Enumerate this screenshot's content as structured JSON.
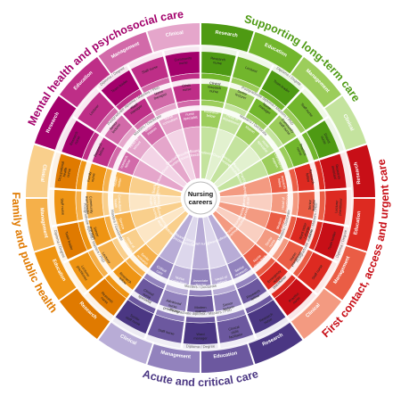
{
  "center": {
    "line1": "Nursing",
    "line2": "careers"
  },
  "rings": {
    "outer": "Diploma / Degree",
    "middle": "Postgraduate diploma / Masters / PhD",
    "inner": "Masters / Doctorate"
  },
  "quadrants": [
    {
      "title": "Supporting long-term care",
      "colors": [
        "#4e9a13",
        "#72b62c",
        "#9ccd5b",
        "#c4e39e",
        "#e2f1cf"
      ],
      "sub": [
        "Research",
        "Education",
        "Management",
        "Clinical"
      ],
      "roles": [
        [
          "Research nurse",
          "Lecturer",
          "Team leader",
          "Staff nurse",
          "District nurse"
        ],
        [
          "Clinical research nurse",
          "Senior lecturer",
          "Nurse manager",
          "Community staff nurse",
          "Practice nurse"
        ],
        [
          "Research fellow",
          "Head of department",
          "Matron",
          "Clinical nurse specialist",
          "Community matron"
        ],
        [
          "Professor",
          "Dean",
          "Director of nursing",
          "Nurse consultant",
          "Practice partner"
        ]
      ]
    },
    {
      "title": "First contact, access and urgent care",
      "colors": [
        "#c80f17",
        "#dd2a21",
        "#ea5d45",
        "#f39a81",
        "#f9cfc1"
      ],
      "sub": [
        "Research",
        "Education",
        "Management",
        "Clinical"
      ],
      "roles": [
        [
          "Research assistant",
          "Lecturer practitioner",
          "Team leader",
          "Staff nurse",
          "Practice nurse"
        ],
        [
          "Research fellow",
          "Senior lecturer",
          "Ward sister / charge nurse",
          "Nurse practitioner",
          "Emergency nurse practitioner"
        ],
        [
          "Clinical research fellow",
          "Head of department",
          "Modern matron",
          "Senior nurse practitioner",
          "Nurse consultant"
        ],
        [
          "Professor",
          "University dean",
          "Director of nursing",
          "Nurse consultant",
          "Practice partner"
        ]
      ]
    },
    {
      "title": "Acute and critical care",
      "colors": [
        "#4b3783",
        "#6c589f",
        "#9282bd",
        "#b8acd6",
        "#ddd7ec"
      ],
      "sub": [
        "Research",
        "Education",
        "Management",
        "Clinical"
      ],
      "roles": [
        [
          "Research nurse",
          "Clinical skills facilitator",
          "Ward manager",
          "Staff nurse",
          "Senior staff nurse"
        ],
        [
          "Research fellow",
          "Senior lecturer",
          "Modern matron",
          "Advanced nurse practitioner",
          "Clinical nurse specialist"
        ],
        [
          "Senior research fellow",
          "Head of school",
          "Associate director",
          "Nurse consultant",
          "Critical care outreach"
        ],
        [
          "Professor",
          "Dean",
          "Chief nurse",
          "Clinical director",
          "Board director"
        ]
      ]
    },
    {
      "title": "Family and public health",
      "colors": [
        "#e07a00",
        "#ee9413",
        "#f5b04a",
        "#f9cf8c",
        "#fce6c5"
      ],
      "sub": [
        "Research",
        "Education",
        "Management",
        "Clinical"
      ],
      "roles": [
        [
          "Research nurse",
          "Lecturer practitioner",
          "Team leader",
          "Staff nurse",
          "Occupational health nurse"
        ],
        [
          "Research fellow",
          "Lecturer",
          "Senior manager",
          "Community team leader",
          "Family nurse"
        ],
        [
          "Senior research fellow",
          "Head of department",
          "Service manager",
          "Consultant health visitor",
          "Health visitor"
        ],
        [
          "Professor",
          "University dean",
          "Director of nursing",
          "Director of public health",
          "Board director"
        ]
      ]
    },
    {
      "title": "Mental health and psychosocial care",
      "colors": [
        "#a3006b",
        "#be2e87",
        "#d26aa9",
        "#e5a6cb",
        "#f3d4e6"
      ],
      "sub": [
        "Research",
        "Education",
        "Management",
        "Clinical"
      ],
      "roles": [
        [
          "Research nurse",
          "Lecturer",
          "Team leader",
          "Staff nurse",
          "Community nurse"
        ],
        [
          "Research fellow",
          "Senior lecturer",
          "Ward manager",
          "Nurse therapist",
          "Crisis nurse"
        ],
        [
          "Senior research fellow",
          "Head of school",
          "Modern matron",
          "Nurse consultant",
          "Clinical nurse specialist"
        ],
        [
          "Professor",
          "Dean",
          "Director of nursing",
          "Consultant nurse",
          "Board director"
        ]
      ]
    }
  ]
}
